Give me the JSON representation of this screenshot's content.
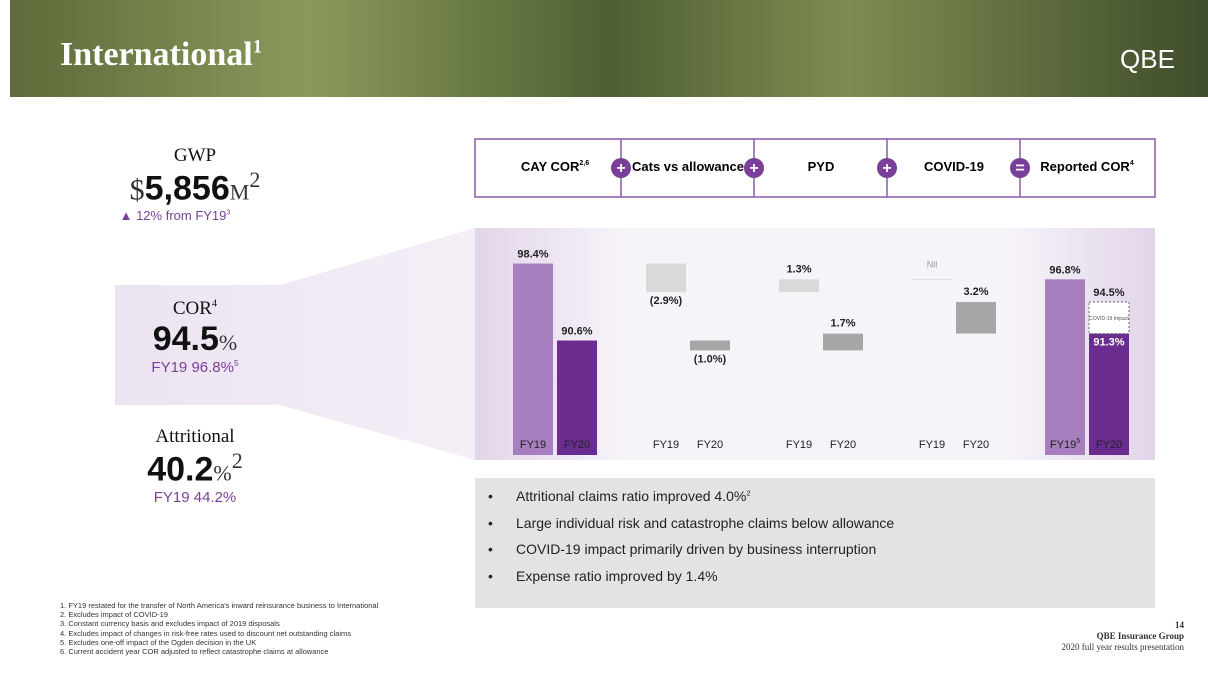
{
  "header": {
    "title": "International",
    "title_note": "1",
    "logo": "QBE"
  },
  "kpis": [
    {
      "label": "GWP",
      "prefix": "$",
      "value": "5,856",
      "unit": "M",
      "unit_note": "2",
      "change": "12% from FY19",
      "change_note": "3"
    },
    {
      "label": "COR",
      "label_note": "4",
      "value": "94.5",
      "unit": "%",
      "comparison": "FY19 96.8%",
      "comparison_note": "5"
    },
    {
      "label": "Attritional",
      "value": "40.2",
      "unit": "%",
      "unit_note": "2",
      "comparison": "FY19 44.2%"
    }
  ],
  "chart_data": {
    "type": "waterfall",
    "categories": [
      "CAY COR",
      "Cats vs allowance",
      "PYD",
      "COVID-19",
      "Reported COR"
    ],
    "category_notes": [
      "2,6",
      null,
      null,
      null,
      "4"
    ],
    "operators": [
      "+",
      "+",
      "+",
      "="
    ],
    "ylim": [
      79,
      102
    ],
    "series": [
      {
        "name": "FY19",
        "color": "#a77fbf",
        "delta_color": "#d9d9d9",
        "values": [
          98.4,
          -2.9,
          1.3,
          0,
          96.8
        ],
        "value_labels": [
          "98.4%",
          "(2.9%)",
          "1.3%",
          "Nil",
          "96.8%"
        ],
        "last_name_note": "5"
      },
      {
        "name": "FY20",
        "color": "#6a2c8e",
        "delta_color": "#a6a6a6",
        "values": [
          90.6,
          -1.0,
          1.7,
          3.2,
          94.5
        ],
        "value_labels": [
          "90.6%",
          "(1.0%)",
          "1.7%",
          "3.2%",
          "94.5%"
        ]
      }
    ],
    "covid_impact": {
      "label": "COVID-19 Impact",
      "base": 91.3,
      "base_label": "91.3%"
    }
  },
  "bullets": [
    "Attritional claims ratio improved 4.0%",
    "Large individual  risk and catastrophe claims below allowance",
    "COVID-19 impact primarily driven by business  interruption",
    "Expense ratio improved by 1.4%"
  ],
  "bullet_notes": {
    "0": "2"
  },
  "footnotes": [
    "1.  FY19 restated for the transfer of North America's inward reinsurance business to International",
    "2.  Excludes impact of COVID-19",
    "3.  Constant currency basis and excludes impact of 2019 disposals",
    "4.  Excludes impact of changes in risk-free rates used to discount net outstanding claims",
    "5.  Excludes one-off impact of the Ogden decision in the UK",
    "6.  Current accident year COR adjusted to reflect catastrophe claims at allowance"
  ],
  "footer": {
    "page": "14",
    "company": "QBE Insurance Group",
    "presentation": "2020 full year results presentation"
  }
}
